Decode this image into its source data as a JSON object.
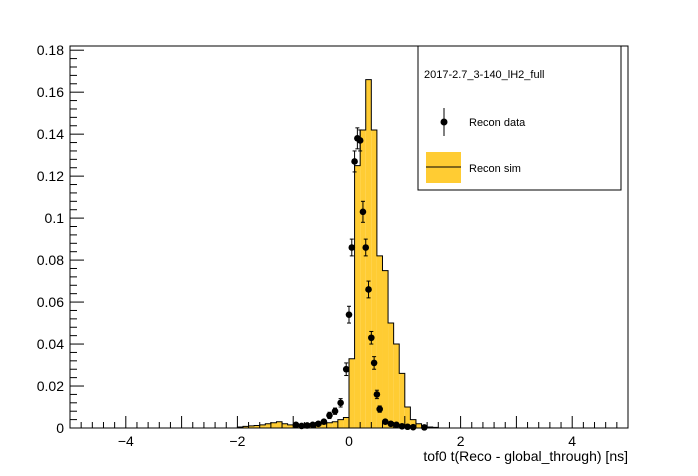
{
  "chart_data": {
    "type": "histogram",
    "title": "",
    "xlabel": "tof0 t(Reco - global_through) [ns]",
    "ylabel": "",
    "xlim": [
      -5,
      5
    ],
    "ylim": [
      0,
      0.182
    ],
    "x_ticks": [
      -4,
      -2,
      0,
      2,
      4
    ],
    "x_tick_labels": [
      "−4",
      "−2",
      "0",
      "2",
      "4"
    ],
    "y_ticks": [
      0,
      0.02,
      0.04,
      0.06,
      0.08,
      0.1,
      0.12,
      0.14,
      0.16,
      0.18
    ],
    "y_tick_labels": [
      "0",
      "0.02",
      "0.04",
      "0.06",
      "0.08",
      "0.1",
      "0.12",
      "0.14",
      "0.16",
      "0.18"
    ],
    "legend": {
      "placement": "top-right",
      "header": "2017-2.7_3-140_lH2_full",
      "entries": [
        "Recon data",
        "Recon sim"
      ]
    },
    "series": [
      {
        "name": "Recon sim",
        "style": "filled-histogram",
        "fill": "#ffcc33",
        "bin_width": 0.1,
        "bin_edges_start": -2.0,
        "values": [
          0.0005,
          0.0008,
          0.001,
          0.0012,
          0.0015,
          0.002,
          0.0025,
          0.003,
          0.002,
          0.0015,
          0.001,
          0.0012,
          0.0018,
          0.002,
          0.0015,
          0.002,
          0.0025,
          0.003,
          0.004,
          0.005,
          0.033,
          0.125,
          0.142,
          0.166,
          0.142,
          0.082,
          0.075,
          0.05,
          0.04,
          0.026,
          0.01,
          0.004,
          0.002,
          0.001,
          0.0005,
          0.0003
        ]
      },
      {
        "name": "Recon data",
        "style": "points-with-errors",
        "color": "#000000",
        "x": [
          -0.95,
          -0.85,
          -0.75,
          -0.65,
          -0.55,
          -0.45,
          -0.35,
          -0.25,
          -0.15,
          -0.05,
          0.0,
          0.05,
          0.1,
          0.15,
          0.2,
          0.25,
          0.3,
          0.35,
          0.4,
          0.45,
          0.5,
          0.55,
          0.65,
          0.75,
          0.85,
          0.95,
          1.05,
          1.15,
          1.35
        ],
        "y": [
          0.0015,
          0.001,
          0.0012,
          0.0015,
          0.002,
          0.003,
          0.006,
          0.008,
          0.012,
          0.028,
          0.054,
          0.086,
          0.127,
          0.138,
          0.137,
          0.103,
          0.086,
          0.066,
          0.043,
          0.031,
          0.016,
          0.009,
          0.003,
          0.002,
          0.0015,
          0.0008,
          0.0006,
          0.0004,
          0.0003
        ],
        "err": [
          0.0008,
          0.0007,
          0.0008,
          0.0008,
          0.001,
          0.001,
          0.0015,
          0.0015,
          0.002,
          0.003,
          0.004,
          0.004,
          0.005,
          0.005,
          0.005,
          0.005,
          0.004,
          0.004,
          0.003,
          0.003,
          0.002,
          0.0015,
          0.001,
          0.001,
          0.0008,
          0.0006,
          0.0005,
          0.0004,
          0.0003
        ]
      }
    ]
  }
}
